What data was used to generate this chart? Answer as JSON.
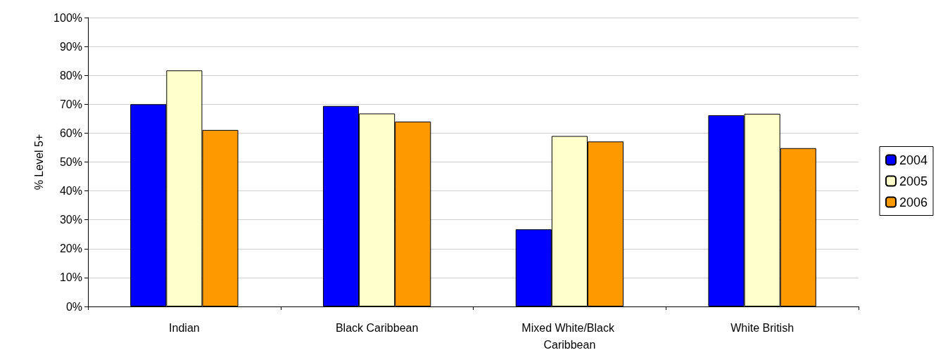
{
  "chart_data": {
    "type": "bar",
    "ylabel": "% Level 5+",
    "categories": [
      "Indian",
      "Black Caribbean",
      "Mixed White/Black Caribbean",
      "White British"
    ],
    "series": [
      {
        "name": "2004",
        "color": "#0000ff",
        "values": [
          70.0,
          69.4,
          26.7,
          66.2
        ]
      },
      {
        "name": "2005",
        "color": "#ffffcc",
        "values": [
          81.7,
          66.8,
          59.0,
          66.7
        ]
      },
      {
        "name": "2006",
        "color": "#ff9900",
        "values": [
          61.1,
          64.0,
          57.1,
          54.8
        ]
      }
    ],
    "ylim": [
      0,
      100
    ],
    "yticks": [
      {
        "value": 0,
        "label": "0%"
      },
      {
        "value": 10,
        "label": "10%"
      },
      {
        "value": 20,
        "label": "20%"
      },
      {
        "value": 30,
        "label": "30%"
      },
      {
        "value": 40,
        "label": "40%"
      },
      {
        "value": 50,
        "label": "50%"
      },
      {
        "value": 60,
        "label": "60%"
      },
      {
        "value": 70,
        "label": "70%"
      },
      {
        "value": 80,
        "label": "80%"
      },
      {
        "value": 90,
        "label": "90%"
      },
      {
        "value": 100,
        "label": "100%"
      }
    ],
    "grid": "y",
    "legend": "right"
  }
}
